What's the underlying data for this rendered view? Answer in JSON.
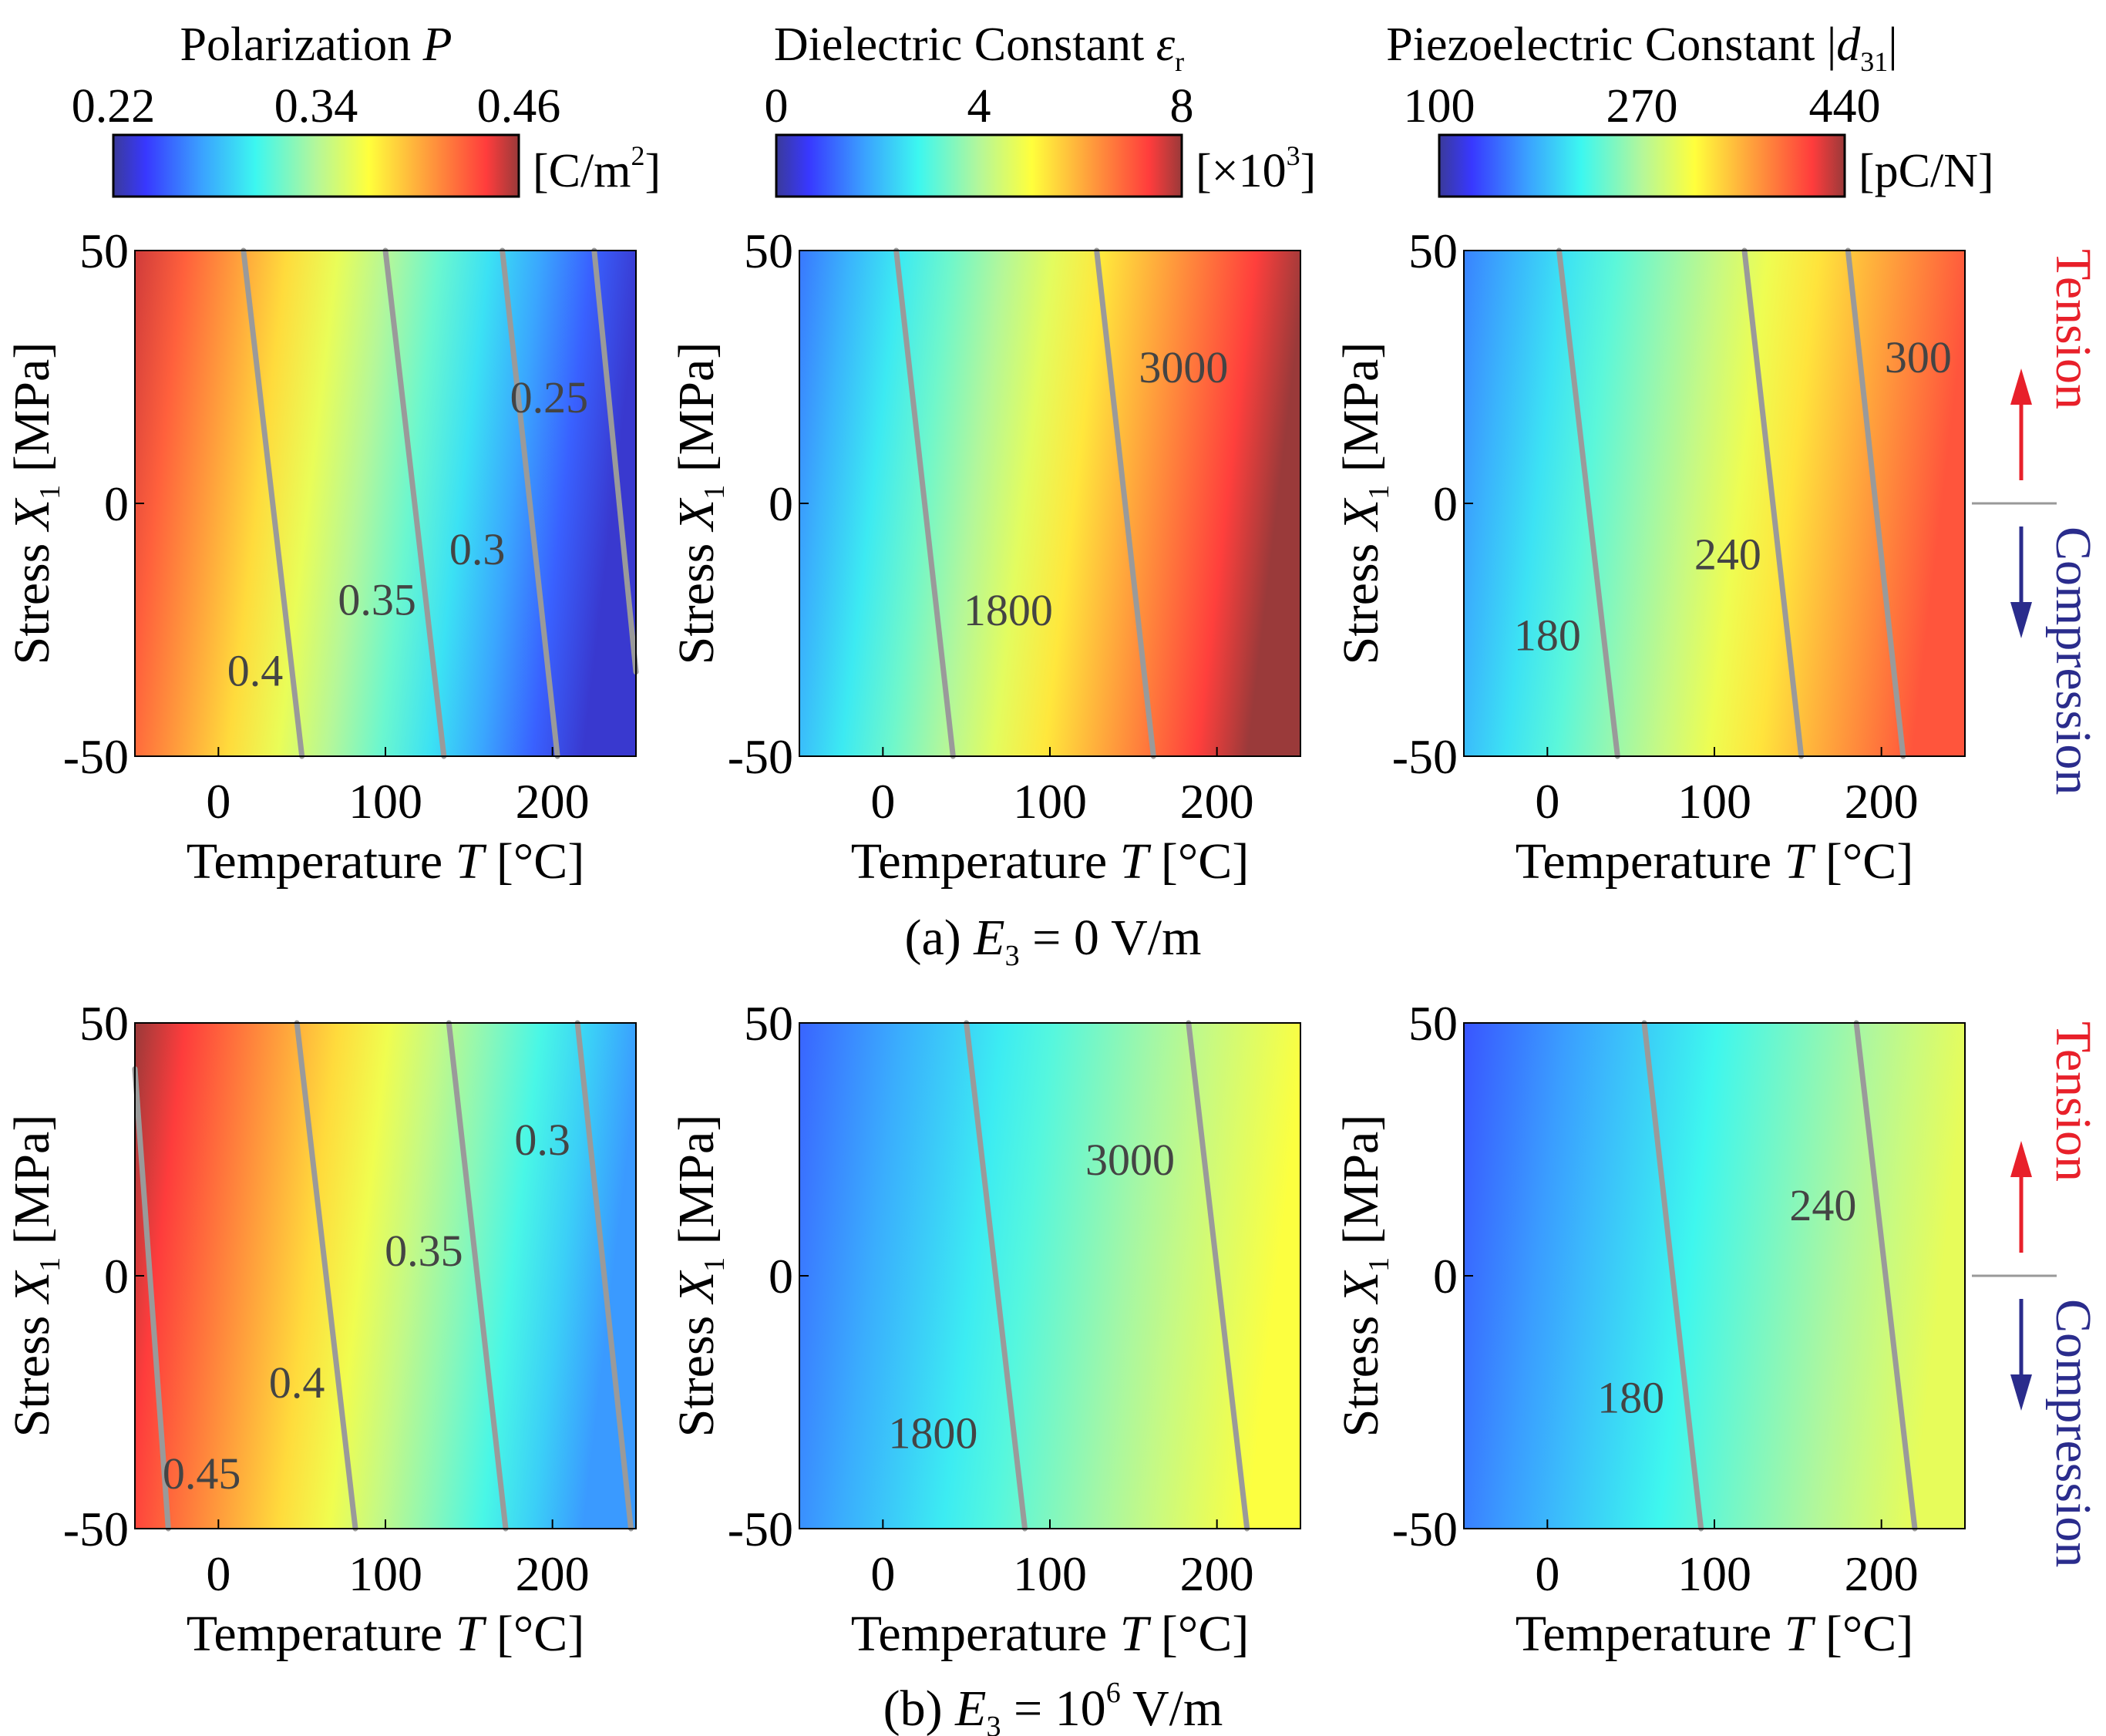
{
  "colorbars": [
    {
      "title_main": "Polarization ",
      "title_sym": "P",
      "title_sub": "",
      "title_tail": "",
      "ticks": [
        "0.22",
        "0.34",
        "0.46"
      ],
      "unit_main": "[C/m",
      "unit_sup": "2",
      "unit_tail": "]"
    },
    {
      "title_main": "Dielectric Constant ",
      "title_sym": "ε",
      "title_sub": "r",
      "title_tail": "",
      "ticks": [
        "0",
        "4",
        "8"
      ],
      "unit_main": "[×10",
      "unit_sup": "3",
      "unit_tail": "]"
    },
    {
      "title_main": "Piezoelectric Constant |",
      "title_sym": "d",
      "title_sub": "31",
      "title_tail": "|",
      "ticks": [
        "100",
        "270",
        "440"
      ],
      "unit_main": "[pC/N]",
      "unit_sup": "",
      "unit_tail": ""
    }
  ],
  "axes": {
    "x_ticks": [
      "0",
      "100",
      "200"
    ],
    "y_ticks": [
      "50",
      "0",
      "-50"
    ],
    "xlabel_main": "Temperature ",
    "xlabel_sym": "T",
    "xlabel_tail": " [°C]",
    "ylabel_main": "Stress ",
    "ylabel_sym": "X",
    "ylabel_sub": "1",
    "ylabel_tail": " [MPa]"
  },
  "captions": [
    {
      "prefix": "(a)",
      "sym": "E",
      "sub": "3",
      "eq": " = 0 V/m",
      "sup": "",
      "tail": ""
    },
    {
      "prefix": "(b)",
      "sym": "E",
      "sub": "3",
      "eq": " = 10",
      "sup": "6",
      "tail": " V/m"
    }
  ],
  "side": {
    "tension": "Tension",
    "compression": "Compression"
  },
  "colors": {
    "tension": "#e8202a",
    "compression": "#2a2c8c",
    "contour": "#9a9a9a",
    "contour_label": "#444444"
  },
  "chart_data": [
    {
      "type": "heatmap",
      "row": "a",
      "quantity": "P",
      "x_range": [
        -50,
        250
      ],
      "y_range": [
        -50,
        50
      ],
      "color_range": [
        0.22,
        0.46
      ],
      "color_value_left": 0.45,
      "color_value_right": 0.23,
      "contours": [
        {
          "label": "0.4",
          "x_bottom": 50,
          "x_top": 15,
          "label_x": 22,
          "label_y": -33
        },
        {
          "label": "0.35",
          "x_bottom": 135,
          "x_top": 100,
          "label_x": 95,
          "label_y": -19
        },
        {
          "label": "0.3",
          "x_bottom": 203,
          "x_top": 170,
          "label_x": 155,
          "label_y": -9
        },
        {
          "label": "0.25",
          "x_bottom": 255,
          "x_top": 225,
          "label_x": 198,
          "label_y": 21
        }
      ]
    },
    {
      "type": "heatmap",
      "row": "a",
      "quantity": "eps_r",
      "x_range": [
        -50,
        250
      ],
      "y_range": [
        -50,
        50
      ],
      "color_range": [
        0,
        8
      ],
      "color_value_left": 1.3,
      "color_value_right": 8,
      "contours": [
        {
          "label": "1800",
          "x_bottom": 42,
          "x_top": 8,
          "label_x": 75,
          "label_y": -21
        },
        {
          "label": "3000",
          "x_bottom": 162,
          "x_top": 128,
          "label_x": 180,
          "label_y": 27
        }
      ]
    },
    {
      "type": "heatmap",
      "row": "a",
      "quantity": "d31",
      "x_range": [
        -50,
        250
      ],
      "y_range": [
        -50,
        50
      ],
      "color_range": [
        100,
        440
      ],
      "color_value_left": 160,
      "color_value_right": 400,
      "contours": [
        {
          "label": "180",
          "x_bottom": 42,
          "x_top": 7,
          "label_x": 0,
          "label_y": -26
        },
        {
          "label": "240",
          "x_bottom": 152,
          "x_top": 118,
          "label_x": 108,
          "label_y": -10
        },
        {
          "label": "300",
          "x_bottom": 213,
          "x_top": 180,
          "label_x": 222,
          "label_y": 29
        }
      ]
    },
    {
      "type": "heatmap",
      "row": "b",
      "quantity": "P",
      "x_range": [
        -50,
        250
      ],
      "y_range": [
        -50,
        50
      ],
      "color_range": [
        0.22,
        0.46
      ],
      "color_value_left": 0.46,
      "color_value_right": 0.27,
      "contours": [
        {
          "label": "0.45",
          "x_bottom": -30,
          "x_top": -52,
          "label_x": -10,
          "label_y": -39
        },
        {
          "label": "0.4",
          "x_bottom": 82,
          "x_top": 47,
          "label_x": 47,
          "label_y": -21
        },
        {
          "label": "0.35",
          "x_bottom": 172,
          "x_top": 138,
          "label_x": 123,
          "label_y": 5
        },
        {
          "label": "0.3",
          "x_bottom": 247,
          "x_top": 215,
          "label_x": 194,
          "label_y": 27
        }
      ]
    },
    {
      "type": "heatmap",
      "row": "b",
      "quantity": "eps_r",
      "x_range": [
        -50,
        250
      ],
      "y_range": [
        -50,
        50
      ],
      "color_range": [
        0,
        8
      ],
      "color_value_left": 1.1,
      "color_value_right": 5.0,
      "contours": [
        {
          "label": "1800",
          "x_bottom": 85,
          "x_top": 50,
          "label_x": 30,
          "label_y": -31
        },
        {
          "label": "3000",
          "x_bottom": 218,
          "x_top": 183,
          "label_x": 148,
          "label_y": 23
        }
      ]
    },
    {
      "type": "heatmap",
      "row": "b",
      "quantity": "d31",
      "x_range": [
        -50,
        250
      ],
      "y_range": [
        -50,
        50
      ],
      "color_range": [
        100,
        440
      ],
      "color_value_left": 140,
      "color_value_right": 300,
      "contours": [
        {
          "label": "180",
          "x_bottom": 92,
          "x_top": 58,
          "label_x": 50,
          "label_y": -24
        },
        {
          "label": "240",
          "x_bottom": 220,
          "x_top": 185,
          "label_x": 165,
          "label_y": 14
        }
      ]
    }
  ]
}
